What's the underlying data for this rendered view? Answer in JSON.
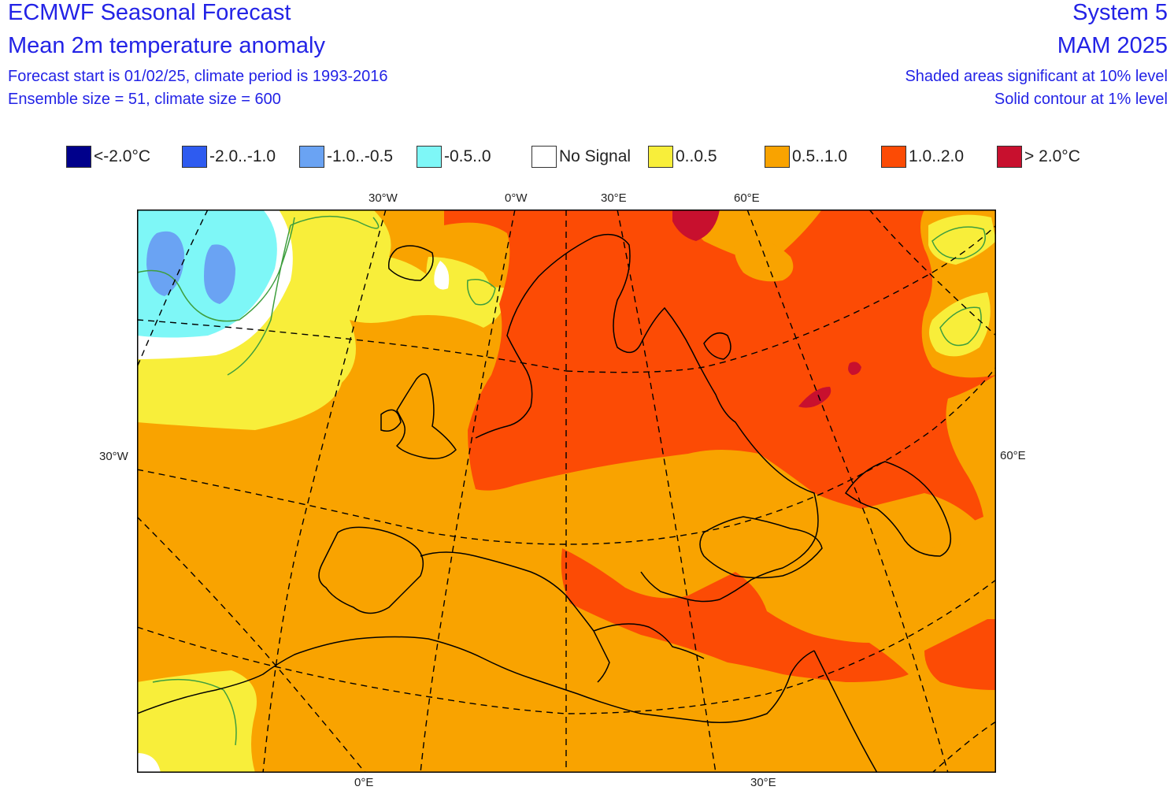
{
  "header": {
    "title": "ECMWF Seasonal Forecast",
    "subtitle": "Mean 2m temperature anomaly",
    "line3": "Forecast start is 01/02/25, climate period is 1993-2016",
    "line4": "Ensemble size = 51, climate size = 600",
    "system": "System 5",
    "season": "MAM 2025",
    "sig_note": "Shaded areas significant at 10% level",
    "contour_note": "Solid contour at 1% level"
  },
  "legend": [
    {
      "label": "<-2.0°C",
      "color": "#00008b"
    },
    {
      "label": "-2.0..-1.0",
      "color": "#2e5bf0"
    },
    {
      "label": "-1.0..-0.5",
      "color": "#6aa3f3"
    },
    {
      "label": "-0.5..0",
      "color": "#7ef7f7"
    },
    {
      "label": "No Signal",
      "color": "#ffffff"
    },
    {
      "label": "0..0.5",
      "color": "#f8ee3a"
    },
    {
      "label": "0.5..1.0",
      "color": "#f9a300"
    },
    {
      "label": "1.0..2.0",
      "color": "#fc4b05"
    },
    {
      "label": "> 2.0°C",
      "color": "#c8102e"
    }
  ],
  "map_labels": {
    "top_30w": "30°W",
    "top_0w": "0°W",
    "top_30e": "30°E",
    "top_60e": "60°E",
    "left_30w": "30°W",
    "right_60e": "60°E",
    "bottom_0e": "0°E",
    "bottom_30e": "30°E"
  },
  "contour_color": "#3e9e3e"
}
